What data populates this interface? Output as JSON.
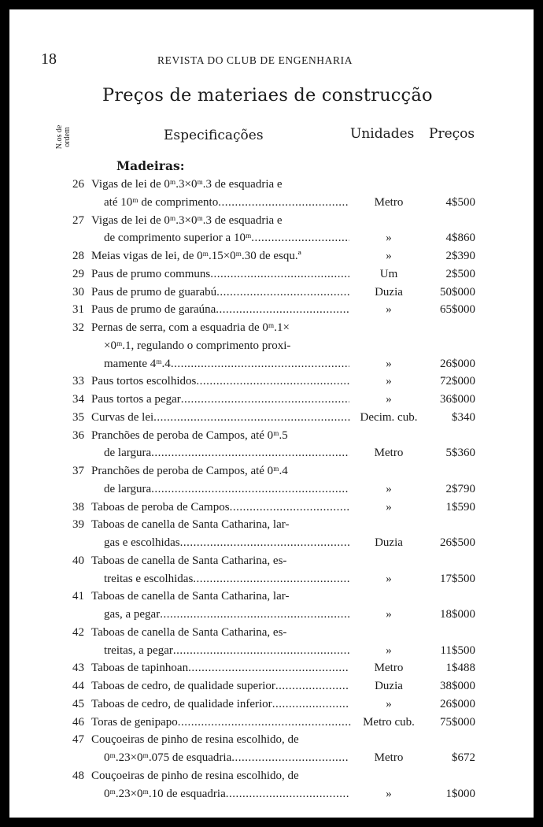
{
  "page_number": "18",
  "running_head": "REVISTA DO CLUB DE ENGENHARIA",
  "title": "Preços de materiaes de construcção",
  "columns": {
    "number": "N.os de ordem",
    "spec": "Especificações",
    "unit": "Unidades",
    "price": "Preços"
  },
  "section": "Madeiras:",
  "items": [
    {
      "num": "26",
      "lines": [
        "Vigas de lei de 0ᵐ.3×0ᵐ.3 de esquadria e",
        "até 10ᵐ de comprimento"
      ],
      "unit": "Metro",
      "price": "4$500"
    },
    {
      "num": "27",
      "lines": [
        "Vigas de lei de 0ᵐ.3×0ᵐ.3 de esquadria e",
        "de comprimento superior a 10ᵐ"
      ],
      "unit": "»",
      "price": "4$860"
    },
    {
      "num": "28",
      "lines": [
        "Meias vigas de lei, de 0ᵐ.15×0ᵐ.30 de esqu.ª"
      ],
      "unit": "»",
      "price": "2$390",
      "nodots": true
    },
    {
      "num": "29",
      "lines": [
        "Paus de prumo communs"
      ],
      "unit": "Um",
      "price": "2$500"
    },
    {
      "num": "30",
      "lines": [
        "Paus de prumo de guarabú"
      ],
      "unit": "Duzia",
      "price": "50$000"
    },
    {
      "num": "31",
      "lines": [
        "Paus de prumo de garaúna"
      ],
      "unit": "»",
      "price": "65$000"
    },
    {
      "num": "32",
      "lines": [
        "Pernas de serra, com a esquadria de 0ᵐ.1×",
        "×0ᵐ.1, regulando o comprimento proxi-",
        "mamente 4ᵐ.4"
      ],
      "unit": "»",
      "price": "26$000"
    },
    {
      "num": "33",
      "lines": [
        "Paus tortos escolhidos"
      ],
      "unit": "»",
      "price": "72$000"
    },
    {
      "num": "34",
      "lines": [
        "Paus tortos a pegar"
      ],
      "unit": "»",
      "price": "36$000"
    },
    {
      "num": "35",
      "lines": [
        "Curvas de lei"
      ],
      "unit": "Decim. cub.",
      "price": "$340"
    },
    {
      "num": "36",
      "lines": [
        "Pranchões de peroba de Campos, até 0ᵐ.5",
        "de largura"
      ],
      "unit": "Metro",
      "price": "5$360"
    },
    {
      "num": "37",
      "lines": [
        "Pranchões de peroba de Campos, até 0ᵐ.4",
        "de largura"
      ],
      "unit": "»",
      "price": "2$790"
    },
    {
      "num": "38",
      "lines": [
        "Taboas de peroba de Campos"
      ],
      "unit": "»",
      "price": "1$590"
    },
    {
      "num": "39",
      "lines": [
        "Taboas de canella de Santa Catharina, lar-",
        "gas e escolhidas"
      ],
      "unit": "Duzia",
      "price": "26$500"
    },
    {
      "num": "40",
      "lines": [
        "Taboas de canella de Santa Catharina, es-",
        "treitas e escolhidas"
      ],
      "unit": "»",
      "price": "17$500"
    },
    {
      "num": "41",
      "lines": [
        "Taboas de canella de Santa Catharina, lar-",
        "gas, a pegar"
      ],
      "unit": "»",
      "price": "18$000"
    },
    {
      "num": "42",
      "lines": [
        "Taboas de canella de Santa Catharina, es-",
        "treitas, a pegar"
      ],
      "unit": "»",
      "price": "11$500"
    },
    {
      "num": "43",
      "lines": [
        "Taboas de tapinhoan"
      ],
      "unit": "Metro",
      "price": "1$488"
    },
    {
      "num": "44",
      "lines": [
        "Taboas de cedro, de qualidade superior"
      ],
      "unit": "Duzia",
      "price": "38$000"
    },
    {
      "num": "45",
      "lines": [
        "Taboas de cedro, de qualidade inferior"
      ],
      "unit": "»",
      "price": "26$000"
    },
    {
      "num": "46",
      "lines": [
        "Toras de genipapo"
      ],
      "unit": "Metro cub.",
      "price": "75$000"
    },
    {
      "num": "47",
      "lines": [
        "Couçoeiras de pinho de resina escolhido, de",
        "0ᵐ.23×0ᵐ.075 de esquadria"
      ],
      "unit": "Metro",
      "price": "$672"
    },
    {
      "num": "48",
      "lines": [
        "Couçoeiras de pinho de resina escolhido, de",
        "0ᵐ.23×0ᵐ.10 de esquadria"
      ],
      "unit": "»",
      "price": "1$000"
    }
  ]
}
